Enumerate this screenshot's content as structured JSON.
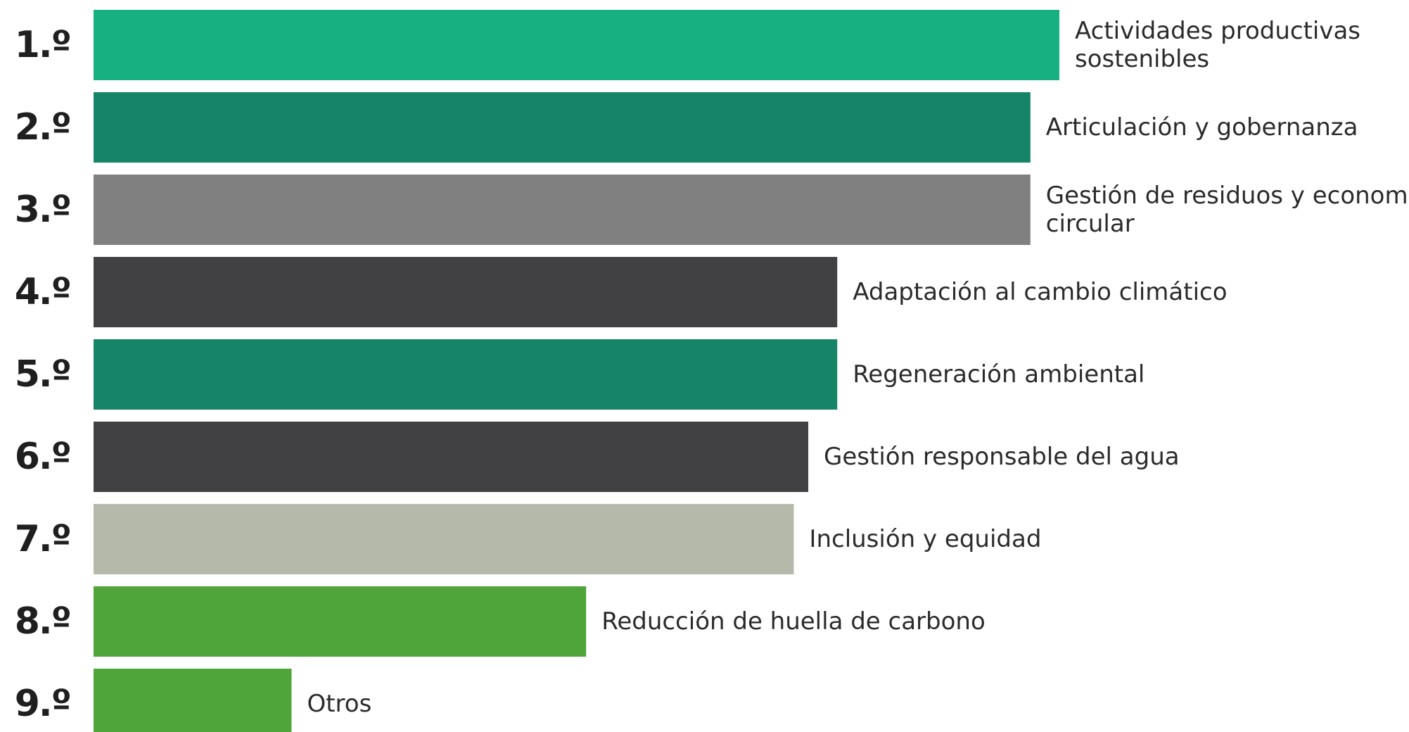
{
  "chart_data": {
    "type": "bar",
    "orientation": "horizontal",
    "title": "",
    "xlabel": "",
    "ylabel": "",
    "ranks": [
      "1.º",
      "2.º",
      "3.º",
      "4.º",
      "5.º",
      "6.º",
      "7.º",
      "8.º",
      "9.º"
    ],
    "categories": [
      [
        "Actividades productivas",
        "sostenibles"
      ],
      [
        "Articulación y gobernanza"
      ],
      [
        "Gestión de residuos y economía",
        "circular"
      ],
      [
        "Adaptación al cambio climático"
      ],
      [
        "Regeneración ambiental"
      ],
      [
        "Gestión responsable del agua"
      ],
      [
        "Inclusión y equidad"
      ],
      [
        "Reducción de huella de carbono"
      ],
      [
        "Otros"
      ]
    ],
    "values": [
      100,
      97,
      97,
      77,
      77,
      74,
      72.5,
      51,
      20.5
    ],
    "value_unit": "relative to largest bar (no axis shown)",
    "xlim": [
      0,
      100
    ],
    "colors": [
      "#17b080",
      "#168466",
      "#808080",
      "#414042",
      "#168466",
      "#414042",
      "#b5b9aa",
      "#4fa53a",
      "#4fa53a"
    ],
    "grid": false,
    "legend": "none"
  }
}
